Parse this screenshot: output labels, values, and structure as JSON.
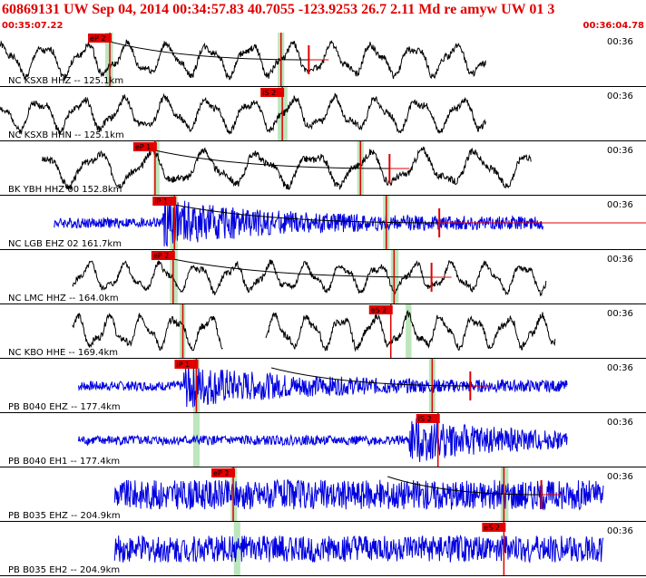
{
  "header": {
    "title": "60869131 UW Sep 04, 2014 00:34:57.83   40.7055 -123.9253 26.7 2.11 Md re amyw UW 01   3",
    "start_time": "00:35:07.22",
    "end_time": "00:36:04.78"
  },
  "colors": {
    "header_text": "#e00000",
    "trace_black": "#000000",
    "trace_blue": "#0000e0",
    "pick_box": "#e00000",
    "pick_window": "#bde6bd",
    "pick_marker": "#e00000",
    "envelope": "#000000"
  },
  "chart_data": {
    "type": "line",
    "title": "60869131 UW Sep 04, 2014 00:34:57.83   40.7055 -123.9253 26.7 2.11 Md re amyw UW 01   3",
    "xlim": [
      "00:35:07.22",
      "00:36:04.78"
    ],
    "series": [
      {
        "name": "NC KSXB HHZ -- 125.1km",
        "label": "NC KSXB HHZ -- 125.1km",
        "tick_label": "00:36",
        "color": "black",
        "trace_range": [
          0.0,
          0.805
        ],
        "pattern": "long",
        "amp": 0.34,
        "period": 0.068,
        "seed": 1,
        "picks": [
          {
            "label": "eP 2",
            "t": 0.17,
            "window": [
              0.163,
              0.175
            ]
          },
          {
            "label": "",
            "t": 0.435,
            "window": [
              0.43,
              0.44
            ]
          }
        ],
        "amp_marker": 0.478,
        "envelope": [
          0.17,
          0.478
        ]
      },
      {
        "name": "NC KSXB HHN -- 125.1km",
        "label": "NC KSXB HHN -- 125.1km",
        "tick_label": "00:36",
        "color": "black",
        "trace_range": [
          0.0,
          0.805
        ],
        "pattern": "long",
        "amp": 0.34,
        "period": 0.07,
        "seed": 2,
        "picks": [
          {
            "label": "iS 2",
            "t": 0.437,
            "window": [
              0.43,
              0.445
            ]
          }
        ]
      },
      {
        "name": "BK YBH HHZ 00 152.8km",
        "label": "BK YBH HHZ 00 152.8km",
        "tick_label": "00:36",
        "color": "black",
        "trace_range": [
          0.07,
          0.88
        ],
        "pattern": "long",
        "amp": 0.36,
        "period": 0.09,
        "seed": 3,
        "picks": [
          {
            "label": "eP 1",
            "t": 0.24,
            "window": [
              0.237,
              0.247
            ]
          },
          {
            "label": "",
            "t": 0.558,
            "window": [
              0.553,
              0.563
            ]
          }
        ],
        "amp_marker": 0.603,
        "envelope": [
          0.24,
          0.603
        ]
      },
      {
        "name": "NC LGB EHZ 02 161.7km",
        "label": "NC LGB EHZ 02 161.7km",
        "tick_label": "00:36",
        "color": "blue",
        "trace_range": [
          0.09,
          0.9
        ],
        "pattern": "burst",
        "amp": 0.44,
        "period": 0.012,
        "seed": 4,
        "picks": [
          {
            "label": "iP 1",
            "t": 0.27,
            "window": [
              0.263,
              0.275
            ]
          },
          {
            "label": "",
            "t": 0.598,
            "window": [
              0.593,
              0.603
            ]
          }
        ],
        "amp_marker": 0.68,
        "envelope": [
          0.27,
          0.68
        ],
        "tail_line": [
          0.68,
          1.0
        ]
      },
      {
        "name": "NC LMC HHZ -- 164.0km",
        "label": "NC LMC HHZ -- 164.0km",
        "tick_label": "00:36",
        "color": "black",
        "trace_range": [
          0.12,
          0.905
        ],
        "pattern": "long",
        "amp": 0.3,
        "period": 0.06,
        "seed": 5,
        "picks": [
          {
            "label": "eP 2",
            "t": 0.268,
            "window": [
              0.263,
              0.275
            ]
          },
          {
            "label": "",
            "t": 0.61,
            "window": [
              0.605,
              0.617
            ]
          }
        ],
        "amp_marker": 0.668,
        "envelope": [
          0.268,
          0.668
        ]
      },
      {
        "name": "NC KBO HHE -- 169.4km",
        "label": "NC KBO HHE -- 169.4km",
        "tick_label": "00:36",
        "color": "black",
        "trace_range": [
          0.12,
          0.92
        ],
        "gap": [
          0.37,
          0.44
        ],
        "pattern": "long",
        "amp": 0.34,
        "period": 0.055,
        "seed": 6,
        "picks": [
          {
            "label": "eS 2",
            "t": 0.605,
            "window": [
              0.628,
              0.637
            ]
          },
          {
            "label": "",
            "t": 0.283,
            "window": [
              0.278,
              0.287
            ]
          }
        ]
      },
      {
        "name": "PB B040 EHZ -- 177.4km",
        "label": "PB B040 EHZ -- 177.4km",
        "tick_label": "00:36",
        "color": "blue",
        "trace_range": [
          0.13,
          0.94
        ],
        "pattern": "burst",
        "amp": 0.4,
        "period": 0.01,
        "seed": 7,
        "picks": [
          {
            "label": "iP 1",
            "t": 0.304,
            "window": [
              0.299,
              0.309
            ]
          },
          {
            "label": "",
            "t": 0.669,
            "window": [
              0.664,
              0.674
            ]
          }
        ],
        "amp_marker": 0.728,
        "envelope": [
          0.42,
          0.728
        ]
      },
      {
        "name": "PB B040 EH1 -- 177.4km",
        "label": "PB B040 EH1 -- 177.4km",
        "tick_label": "00:36",
        "color": "blue",
        "trace_range": [
          0.13,
          0.94
        ],
        "pattern": "burst",
        "amp": 0.4,
        "period": 0.01,
        "seed": 8,
        "picks": [
          {
            "label": "iS 2",
            "t": 0.678,
            "window": [
              0.299,
              0.309
            ]
          }
        ]
      },
      {
        "name": "PB B035 EHZ -- 204.9km",
        "label": "PB B035 EHZ -- 204.9km",
        "tick_label": "00:36",
        "color": "blue",
        "trace_range": [
          0.19,
          1.0
        ],
        "pattern": "noise",
        "amp": 0.42,
        "period": 0.008,
        "seed": 9,
        "picks": [
          {
            "label": "eP 2",
            "t": 0.361,
            "window": [
              0.357,
              0.367
            ]
          },
          {
            "label": "",
            "t": 0.78,
            "window": [
              0.775,
              0.787
            ]
          }
        ],
        "amp_marker": 0.838,
        "envelope": [
          0.6,
          0.838
        ]
      },
      {
        "name": "PB B035 EH2 -- 204.9km",
        "label": "PB B035 EH2 -- 204.9km",
        "tick_label": "00:36",
        "color": "blue",
        "trace_range": [
          0.19,
          1.0
        ],
        "pattern": "noise",
        "amp": 0.38,
        "period": 0.008,
        "seed": 10,
        "picks": [
          {
            "label": "eS 2",
            "t": 0.78,
            "window": [
              0.362,
              0.372
            ]
          }
        ]
      }
    ],
    "grid": false,
    "legend": "none"
  }
}
